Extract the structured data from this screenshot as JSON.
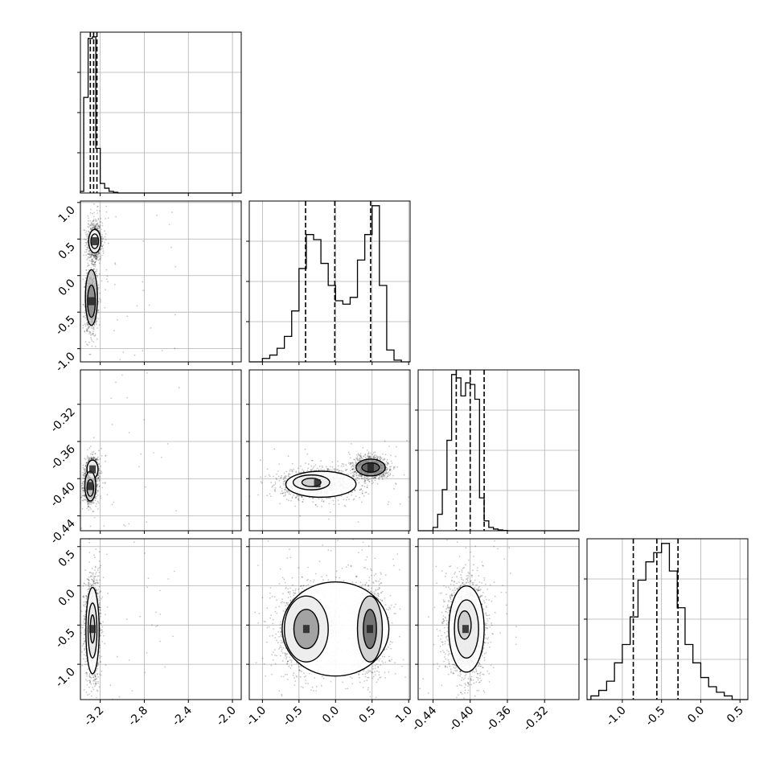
{
  "chart_data": {
    "type": "corner",
    "title": "",
    "grid": true,
    "colors": {
      "axes": "#000000",
      "grid": "#b0b0b0",
      "points": "#000000",
      "hist": "#000000",
      "quantile": "#000000"
    },
    "parameters": [
      {
        "range": [
          -3.38,
          -1.92
        ],
        "ticks": [
          "-3.2",
          "-2.8",
          "-2.4",
          "-2.0"
        ],
        "tick_values": [
          -3.2,
          -2.8,
          -2.4,
          -2.0
        ],
        "quantiles": [
          -3.29,
          -3.26,
          -3.23
        ],
        "hist": {
          "edges": [
            -3.38,
            -3.35,
            -3.31,
            -3.27,
            -3.24,
            -3.2,
            -3.16,
            -3.12,
            -3.08,
            -3.04
          ],
          "values": [
            0.01,
            0.6,
            0.97,
            0.98,
            0.28,
            0.06,
            0.03,
            0.01,
            0.004
          ]
        }
      },
      {
        "range": [
          -1.18,
          1.02
        ],
        "ticks": [
          "-1.0",
          "-0.5",
          "0.0",
          "0.5",
          "1.0"
        ],
        "tick_values": [
          -1.0,
          -0.5,
          0.0,
          0.5,
          1.0
        ],
        "quantiles": [
          -0.41,
          -0.01,
          0.48
        ],
        "hist": {
          "edges": [
            -1.0,
            -0.9,
            -0.8,
            -0.7,
            -0.6,
            -0.5,
            -0.4,
            -0.3,
            -0.2,
            -0.1,
            0.0,
            0.1,
            0.2,
            0.3,
            0.4,
            0.5,
            0.6,
            0.7,
            0.8,
            0.9
          ],
          "values": [
            0.02,
            0.04,
            0.08,
            0.15,
            0.3,
            0.55,
            0.75,
            0.72,
            0.58,
            0.45,
            0.36,
            0.34,
            0.38,
            0.6,
            0.75,
            0.92,
            0.45,
            0.07,
            0.01
          ]
        }
      },
      {
        "range": [
          -0.456,
          -0.283
        ],
        "ticks": [
          "-0.44",
          "-0.40",
          "-0.36",
          "-0.32"
        ],
        "tick_values": [
          -0.44,
          -0.4,
          -0.36,
          -0.32
        ],
        "quantiles": [
          -0.415,
          -0.4,
          -0.385
        ],
        "hist": {
          "edges": [
            -0.44,
            -0.435,
            -0.43,
            -0.425,
            -0.42,
            -0.415,
            -0.41,
            -0.405,
            -0.4,
            -0.395,
            -0.39,
            -0.385,
            -0.38,
            -0.375,
            -0.37,
            -0.365,
            -0.36
          ],
          "values": [
            0.02,
            0.1,
            0.25,
            0.55,
            0.95,
            0.93,
            0.82,
            0.9,
            0.89,
            0.8,
            0.2,
            0.06,
            0.02,
            0.01,
            0.005,
            0.002
          ]
        }
      },
      {
        "range": [
          -1.45,
          0.6
        ],
        "ticks": [
          "-1.0",
          "-0.5",
          "0.0",
          "0.5"
        ],
        "tick_values": [
          -1.0,
          -0.5,
          0.0,
          0.5
        ],
        "quantiles": [
          -0.86,
          -0.56,
          -0.29
        ],
        "hist": {
          "edges": [
            -1.4,
            -1.3,
            -1.2,
            -1.1,
            -1.0,
            -0.9,
            -0.8,
            -0.7,
            -0.6,
            -0.5,
            -0.4,
            -0.3,
            -0.2,
            -0.1,
            0.0,
            0.1,
            0.2,
            0.3,
            0.4
          ],
          "values": [
            0.02,
            0.05,
            0.1,
            0.2,
            0.3,
            0.45,
            0.65,
            0.75,
            0.8,
            0.85,
            0.7,
            0.5,
            0.3,
            0.2,
            0.12,
            0.07,
            0.04,
            0.02
          ]
        }
      }
    ],
    "pairs": [
      {
        "row": 1,
        "col": 0,
        "clusters": [
          {
            "mx": -3.25,
            "my": 0.47,
            "sx": 0.03,
            "sy": 0.12,
            "w": 0.45
          },
          {
            "mx": -3.28,
            "my": -0.35,
            "sx": 0.025,
            "sy": 0.18,
            "w": 0.55
          }
        ],
        "contours": [
          {
            "cx": -3.25,
            "cy": 0.47,
            "rx": 0.055,
            "ry": 0.16,
            "rot": 0
          },
          {
            "cx": -3.25,
            "cy": 0.47,
            "rx": 0.035,
            "ry": 0.1,
            "rot": 0
          },
          {
            "cx": -3.28,
            "cy": -0.3,
            "rx": 0.055,
            "ry": 0.38,
            "rot": 0
          },
          {
            "cx": -3.28,
            "cy": -0.35,
            "rx": 0.035,
            "ry": 0.22,
            "rot": 0
          }
        ]
      },
      {
        "row": 2,
        "col": 0,
        "clusters": [
          {
            "mx": -3.27,
            "my": -0.39,
            "sx": 0.025,
            "sy": 0.006,
            "w": 0.4
          },
          {
            "mx": -3.29,
            "my": -0.408,
            "sx": 0.025,
            "sy": 0.008,
            "w": 0.6
          }
        ],
        "contours": [
          {
            "cx": -3.27,
            "cy": -0.39,
            "rx": 0.05,
            "ry": 0.01,
            "rot": 0
          },
          {
            "cx": -3.29,
            "cy": -0.408,
            "rx": 0.05,
            "ry": 0.016,
            "rot": 0
          },
          {
            "cx": -3.29,
            "cy": -0.41,
            "rx": 0.03,
            "ry": 0.009,
            "rot": 0
          }
        ]
      },
      {
        "row": 2,
        "col": 1,
        "clusters": [
          {
            "mx": -0.25,
            "my": -0.405,
            "sx": 0.25,
            "sy": 0.008,
            "w": 0.55
          },
          {
            "mx": 0.48,
            "my": -0.388,
            "sx": 0.12,
            "sy": 0.006,
            "w": 0.45
          }
        ],
        "contours": [
          {
            "cx": -0.2,
            "cy": -0.406,
            "rx": 0.48,
            "ry": 0.014,
            "rot": 0
          },
          {
            "cx": -0.33,
            "cy": -0.404,
            "rx": 0.25,
            "ry": 0.008,
            "rot": 0
          },
          {
            "cx": -0.33,
            "cy": -0.404,
            "rx": 0.13,
            "ry": 0.0045,
            "rot": 0
          },
          {
            "cx": 0.48,
            "cy": -0.388,
            "rx": 0.2,
            "ry": 0.009,
            "rot": 0
          },
          {
            "cx": 0.48,
            "cy": -0.388,
            "rx": 0.12,
            "ry": 0.005,
            "rot": 0
          }
        ]
      },
      {
        "row": 3,
        "col": 0,
        "clusters": [
          {
            "mx": -3.27,
            "my": -0.55,
            "sx": 0.03,
            "sy": 0.28,
            "w": 1.0
          }
        ],
        "contours": [
          {
            "cx": -3.27,
            "cy": -0.57,
            "rx": 0.06,
            "ry": 0.55,
            "rot": 0
          },
          {
            "cx": -3.27,
            "cy": -0.57,
            "rx": 0.04,
            "ry": 0.35,
            "rot": 0
          },
          {
            "cx": -3.27,
            "cy": -0.55,
            "rx": 0.02,
            "ry": 0.18,
            "rot": 0
          }
        ]
      },
      {
        "row": 3,
        "col": 1,
        "clusters": [
          {
            "mx": -0.4,
            "my": -0.55,
            "sx": 0.22,
            "sy": 0.3,
            "w": 0.5
          },
          {
            "mx": 0.47,
            "my": -0.55,
            "sx": 0.12,
            "sy": 0.3,
            "w": 0.5
          }
        ],
        "contours": [
          {
            "cx": 0.0,
            "cy": -0.55,
            "rx": 0.73,
            "ry": 0.6,
            "rot": 0
          },
          {
            "cx": -0.4,
            "cy": -0.55,
            "rx": 0.3,
            "ry": 0.42,
            "rot": 0
          },
          {
            "cx": 0.47,
            "cy": -0.55,
            "rx": 0.17,
            "ry": 0.42,
            "rot": 0
          },
          {
            "cx": -0.4,
            "cy": -0.55,
            "rx": 0.17,
            "ry": 0.25,
            "rot": 0
          },
          {
            "cx": 0.47,
            "cy": -0.55,
            "rx": 0.09,
            "ry": 0.25,
            "rot": 0
          }
        ]
      },
      {
        "row": 3,
        "col": 2,
        "clusters": [
          {
            "mx": -0.405,
            "my": -0.55,
            "sx": 0.01,
            "sy": 0.3,
            "w": 1.0
          }
        ],
        "contours": [
          {
            "cx": -0.404,
            "cy": -0.55,
            "rx": 0.019,
            "ry": 0.55,
            "rot": 0
          },
          {
            "cx": -0.404,
            "cy": -0.55,
            "rx": 0.013,
            "ry": 0.37,
            "rot": 0
          },
          {
            "cx": -0.406,
            "cy": -0.5,
            "rx": 0.007,
            "ry": 0.18,
            "rot": 0
          }
        ]
      }
    ]
  }
}
